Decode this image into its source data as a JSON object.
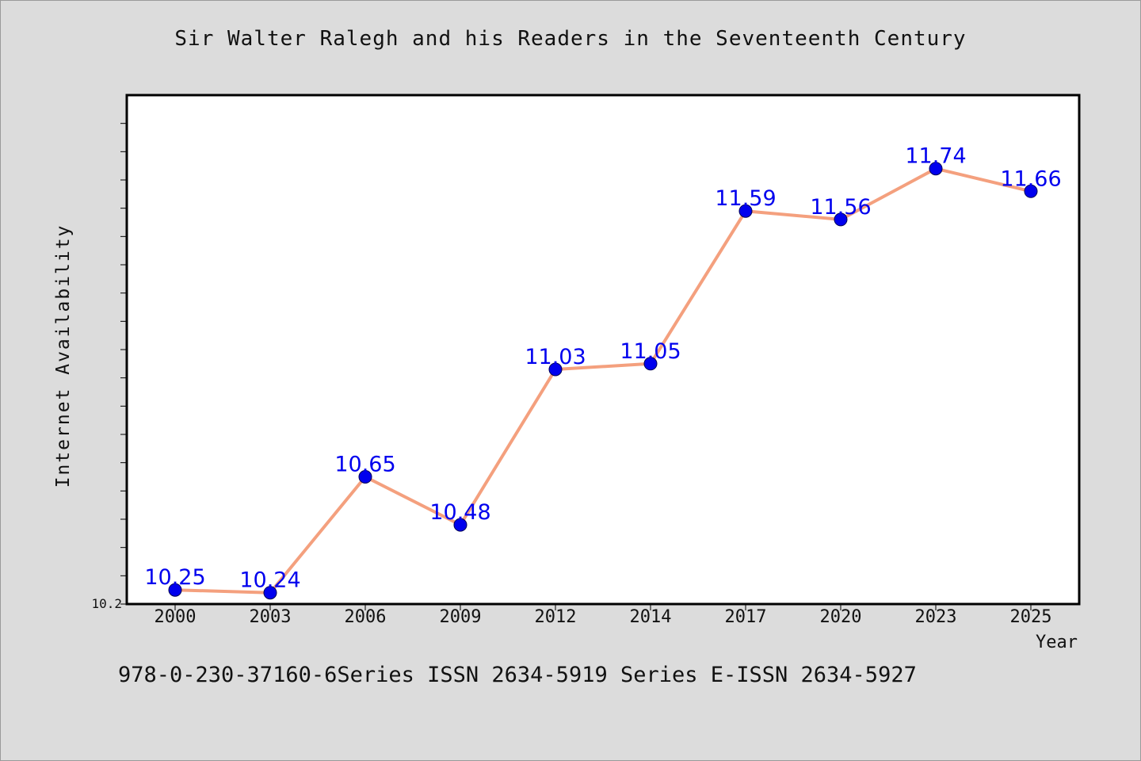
{
  "chart_data": {
    "type": "line",
    "title": "Sir Walter Ralegh and his Readers in the Seventeenth Century",
    "xlabel": "Year",
    "ylabel": "Internet Availability",
    "categories": [
      "2000",
      "2003",
      "2006",
      "2009",
      "2012",
      "2014",
      "2017",
      "2020",
      "2023",
      "2025"
    ],
    "series": [
      {
        "values": [
          10.25,
          10.24,
          10.65,
          10.48,
          11.03,
          11.05,
          11.59,
          11.56,
          11.74,
          11.66
        ]
      }
    ],
    "ytick_labels": [
      "10.2"
    ],
    "ylim": [
      10.2,
      12.0
    ],
    "grid": false,
    "legend": "none",
    "colors": {
      "line": "#f4a07e",
      "marker": "#0000ee",
      "label": "#0000ee",
      "background": "#dcdcdc",
      "plot": "#ffffff"
    }
  },
  "footer": {
    "text": "978-0-230-37160-6Series ISSN 2634-5919 Series E-ISSN 2634-5927"
  }
}
